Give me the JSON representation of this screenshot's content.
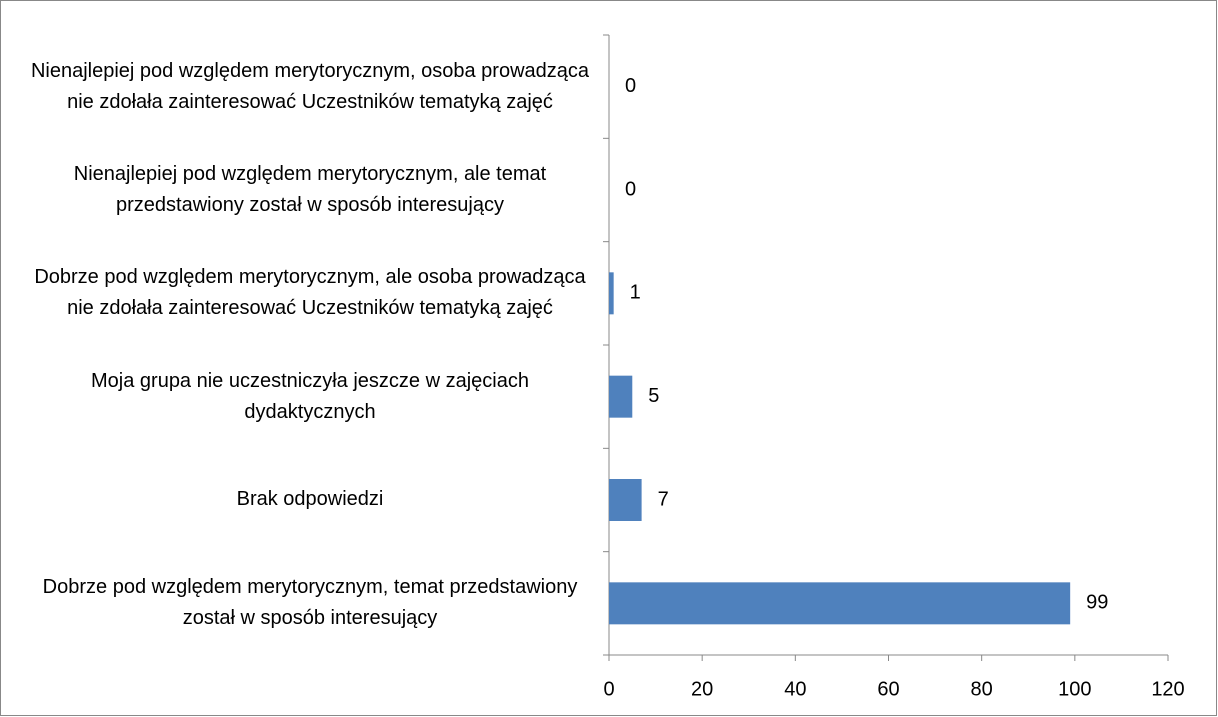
{
  "chart_data": {
    "type": "bar",
    "orientation": "horizontal",
    "categories": [
      "Nienajlepiej pod względem merytorycznym, osoba prowadząca nie zdołała zainteresować Uczestników tematyką zajęć",
      "Nienajlepiej pod względem merytorycznym, ale temat przedstawiony został w sposób interesujący",
      "Dobrze pod względem merytorycznym, ale osoba prowadząca nie zdołała zainteresować Uczestników tematyką zajęć",
      "Moja grupa nie uczestniczyła jeszcze w zajęciach dydaktycznych",
      "Brak odpowiedzi",
      "Dobrze pod względem merytorycznym, temat przedstawiony został w sposób interesujący"
    ],
    "values": [
      0,
      0,
      1,
      5,
      7,
      99
    ],
    "color": "#4f81bd",
    "xlim": [
      0,
      120
    ],
    "xticks": [
      0,
      20,
      40,
      60,
      80,
      100,
      120
    ],
    "grid": false
  }
}
